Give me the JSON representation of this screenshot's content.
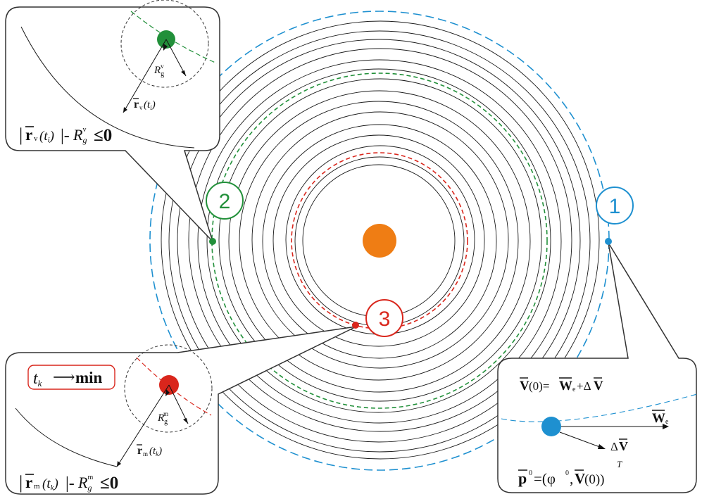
{
  "colors": {
    "sun": "#ef7d14",
    "blue": "#1e90d0",
    "green": "#22903a",
    "red": "#d9261c",
    "orbit": "#1a1a1a",
    "callout_border": "#333333"
  },
  "markers": {
    "m1": "1",
    "m2": "2",
    "m3": "3"
  },
  "callout_v": {
    "eq_left": "|",
    "eq_r": "r",
    "eq_sub": "v",
    "eq_t": "(t",
    "eq_i": "i",
    "eq_close": ")",
    "eq_mid": "|-",
    "eq_R": "R",
    "eq_g": "g",
    "eq_sup": "v",
    "eq_le": "≤0",
    "radius_R": "R",
    "radius_g": "g",
    "radius_sup": "v",
    "vec_r": "r",
    "vec_sub": "v",
    "vec_t": "(t",
    "vec_i": "i",
    "vec_close": ")"
  },
  "callout_m": {
    "tk_t": "t",
    "tk_k": "k",
    "tk_arrow": "⟶",
    "tk_min": "min",
    "radius_R": "R",
    "radius_g": "g",
    "radius_sup": "m",
    "vec_r": "r",
    "vec_sub": "m",
    "vec_t": "(t",
    "vec_k": "k",
    "vec_close": ")",
    "eq_left": "|",
    "eq_r": "r",
    "eq_sub": "m",
    "eq_t": "(t",
    "eq_k": "k",
    "eq_close": ")",
    "eq_mid": "|-",
    "eq_R": "R",
    "eq_g": "g",
    "eq_sup": "m",
    "eq_le": "≤0"
  },
  "callout_1": {
    "v_V": "V",
    "v_arg": "(0)=",
    "v_W": "W",
    "v_e": "e",
    "v_plus": "+Δ",
    "v_V2": "V",
    "we_W": "W",
    "we_e": "e",
    "dv_d": "Δ",
    "dv_V": "V",
    "p_p": "p",
    "p_sup": "0",
    "p_eq": "=(φ",
    "p_phi_sup": "0",
    "p_comma": ",",
    "p_V": "V",
    "p_arg": "(0))",
    "p_T": "T"
  }
}
